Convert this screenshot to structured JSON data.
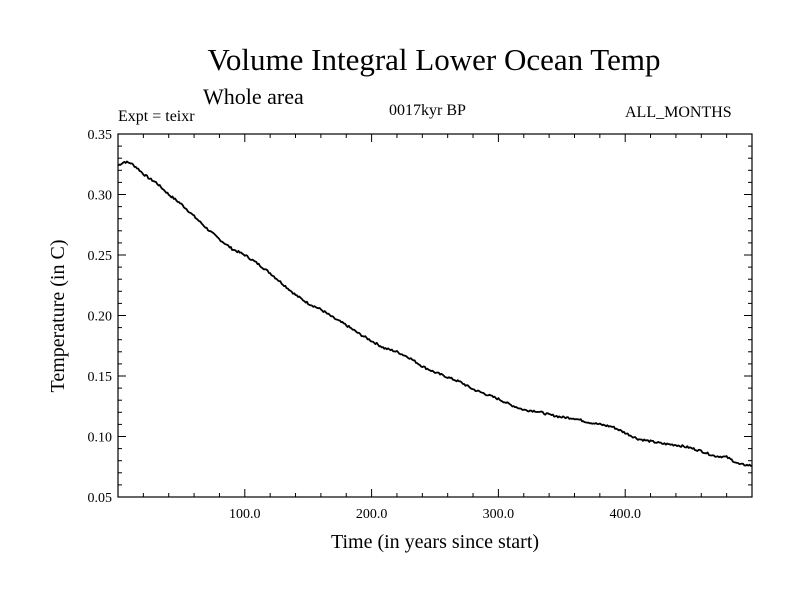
{
  "chart_data": {
    "type": "line",
    "title": "Volume Integral Lower Ocean Temp",
    "subtitle": "Whole area",
    "top_left_label": "Expt = teixr",
    "top_center_label": "0017kyr BP",
    "top_right_label": "ALL_MONTHS",
    "xlabel": "Time (in years since start)",
    "ylabel": "Temperature (in C)",
    "xlim": [
      0,
      500
    ],
    "ylim": [
      0.05,
      0.35
    ],
    "xticks": [
      {
        "value": 100,
        "label": "100.0"
      },
      {
        "value": 200,
        "label": "200.0"
      },
      {
        "value": 300,
        "label": "300.0"
      },
      {
        "value": 400,
        "label": "400.0"
      }
    ],
    "yticks": [
      {
        "value": 0.05,
        "label": "0.05"
      },
      {
        "value": 0.1,
        "label": "0.10"
      },
      {
        "value": 0.15,
        "label": "0.15"
      },
      {
        "value": 0.2,
        "label": "0.20"
      },
      {
        "value": 0.25,
        "label": "0.25"
      },
      {
        "value": 0.3,
        "label": "0.30"
      },
      {
        "value": 0.35,
        "label": "0.35"
      }
    ],
    "grid": false,
    "series": [
      {
        "color": "#000000",
        "x": [
          0,
          5,
          10,
          15,
          20,
          25,
          30,
          35,
          40,
          45,
          50,
          60,
          70,
          80,
          90,
          100,
          110,
          120,
          130,
          140,
          150,
          160,
          170,
          180,
          190,
          200,
          210,
          220,
          230,
          240,
          250,
          260,
          270,
          280,
          290,
          300,
          310,
          320,
          330,
          340,
          350,
          360,
          370,
          380,
          390,
          400,
          410,
          420,
          430,
          440,
          450,
          460,
          470,
          480,
          490,
          500
        ],
        "y": [
          0.324,
          0.327,
          0.326,
          0.322,
          0.317,
          0.313,
          0.31,
          0.305,
          0.3,
          0.296,
          0.292,
          0.282,
          0.272,
          0.263,
          0.255,
          0.25,
          0.243,
          0.235,
          0.226,
          0.217,
          0.21,
          0.205,
          0.198,
          0.192,
          0.185,
          0.179,
          0.173,
          0.17,
          0.165,
          0.158,
          0.153,
          0.149,
          0.145,
          0.139,
          0.135,
          0.131,
          0.126,
          0.122,
          0.121,
          0.118,
          0.116,
          0.115,
          0.112,
          0.11,
          0.108,
          0.103,
          0.098,
          0.096,
          0.094,
          0.093,
          0.091,
          0.088,
          0.084,
          0.083,
          0.077,
          0.076
        ]
      }
    ]
  }
}
